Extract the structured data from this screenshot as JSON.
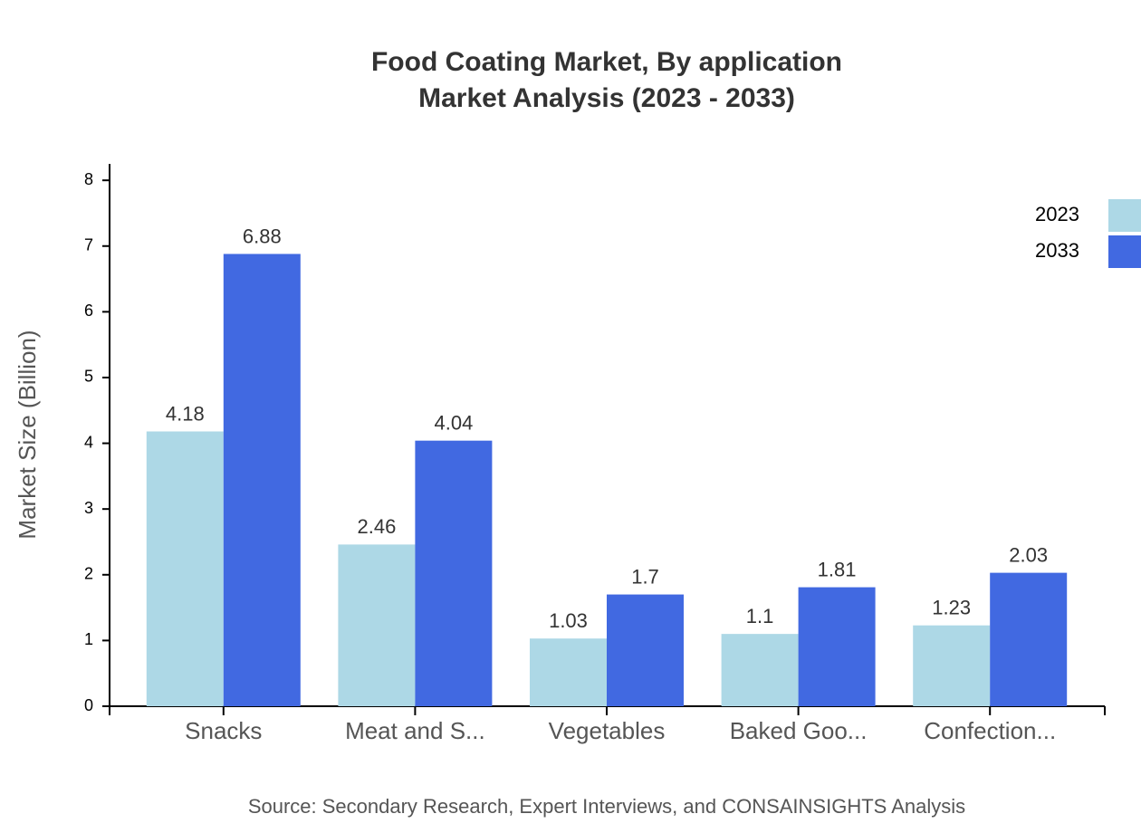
{
  "chart_data": {
    "type": "bar",
    "title": "Food Coating Market, By application",
    "subtitle": "Market Analysis (2023 - 2033)",
    "y_label": "Market Size (Billion)",
    "source": "Source: Secondary Research, Expert Interviews, and CONSAINSIGHTS Analysis",
    "categories": [
      "Snacks",
      "Meat and S...",
      "Vegetables",
      "Baked Goo...",
      "Confection..."
    ],
    "series": [
      {
        "name": "2023",
        "color": "#add8e6",
        "values": [
          4.18,
          2.46,
          1.03,
          1.1,
          1.23
        ]
      },
      {
        "name": "2033",
        "color": "#4169e1",
        "values": [
          6.88,
          4.04,
          1.7,
          1.81,
          2.03
        ]
      }
    ],
    "ylim": [
      0,
      8.25
    ],
    "yticks": [
      0,
      1,
      2,
      3,
      4,
      5,
      6,
      7,
      8
    ],
    "legend": "top-right"
  }
}
